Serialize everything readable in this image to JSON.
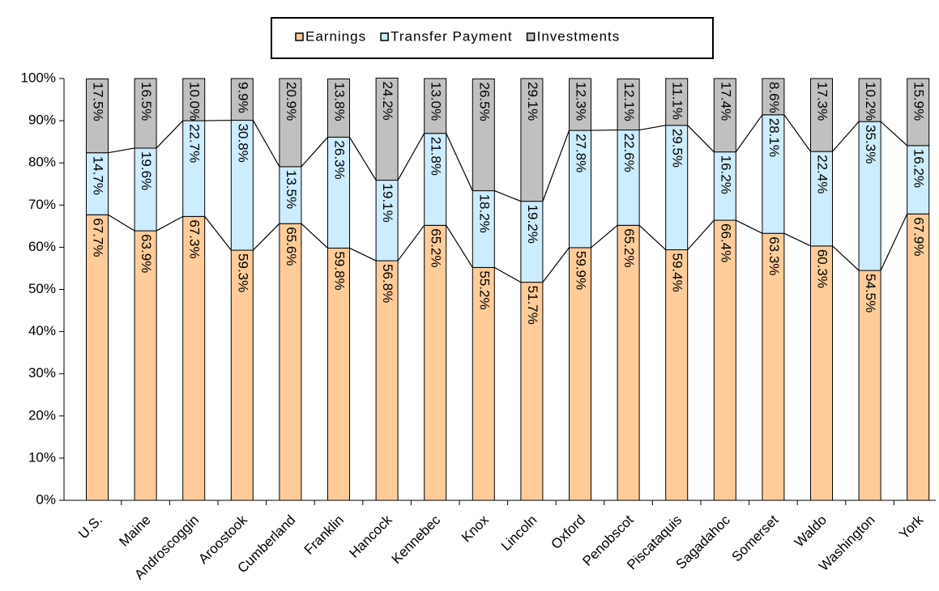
{
  "chart_data": {
    "type": "stacked-bar",
    "categories": [
      "U.S.",
      "Maine",
      "Androscoggin",
      "Aroostook",
      "Cumberland",
      "Franklin",
      "Hancock",
      "Kennebec",
      "Knox",
      "Lincoln",
      "Oxford",
      "Penobscot",
      "Piscataquis",
      "Sagadahoc",
      "Somerset",
      "Waldo",
      "Washington",
      "York"
    ],
    "series": [
      {
        "name": "Earnings",
        "color": "#FFCC99",
        "values": [
          67.7,
          63.9,
          67.3,
          59.3,
          65.6,
          59.8,
          56.8,
          65.2,
          55.2,
          51.7,
          59.9,
          65.2,
          59.4,
          66.4,
          63.3,
          60.3,
          54.5,
          67.9
        ],
        "value_labels": [
          "67.7%",
          "63.9%",
          "67.3%",
          "59.3%",
          "65.6%",
          "59.8%",
          "56.8%",
          "65.2%",
          "55.2%",
          "51.7%",
          "59.9%",
          "65.2%",
          "59.4%",
          "66.4%",
          "63.3%",
          "60.3%",
          "54.5%",
          "67.9%"
        ]
      },
      {
        "name": "Transfer Payment",
        "color": "#CCECFF",
        "values": [
          14.7,
          19.6,
          22.7,
          30.8,
          13.5,
          26.3,
          19.1,
          21.8,
          18.2,
          19.2,
          27.8,
          22.6,
          29.5,
          16.2,
          28.1,
          22.4,
          35.3,
          16.2
        ],
        "value_labels": [
          "14.7%",
          "19.6%",
          "22.7%",
          "30.8%",
          "13.5%",
          "26.3%",
          "19.1%",
          "21.8%",
          "18.2%",
          "19.2%",
          "27.8%",
          "22.6%",
          "29.5%",
          "16.2%",
          "28.1%",
          "22.4%",
          "35.3%",
          "16.2%"
        ]
      },
      {
        "name": "Investments",
        "color": "#C0C0C0",
        "values": [
          17.5,
          16.5,
          10.0,
          9.9,
          20.9,
          13.8,
          24.2,
          13.0,
          26.5,
          29.1,
          12.3,
          12.1,
          11.1,
          17.4,
          8.6,
          17.3,
          10.2,
          15.9
        ],
        "value_labels": [
          "17.5%",
          "16.5%",
          "10.0%",
          "9.9%",
          "20.9%",
          "13.8%",
          "24.2%",
          "13.0%",
          "26.5%",
          "29.1%",
          "12.3%",
          "12.1%",
          "11.1%",
          "17.4%",
          "8.6%",
          "17.3%",
          "10.2%",
          "15.9%"
        ]
      }
    ],
    "ylim": [
      0,
      100
    ],
    "yticks": [
      {
        "value": 0,
        "label": "0%"
      },
      {
        "value": 10,
        "label": "10%"
      },
      {
        "value": 20,
        "label": "20%"
      },
      {
        "value": 30,
        "label": "30%"
      },
      {
        "value": 40,
        "label": "40%"
      },
      {
        "value": 50,
        "label": "50%"
      },
      {
        "value": 60,
        "label": "60%"
      },
      {
        "value": 70,
        "label": "70%"
      },
      {
        "value": 80,
        "label": "80%"
      },
      {
        "value": 90,
        "label": "90%"
      },
      {
        "value": 100,
        "label": "100%"
      }
    ],
    "legend": "top"
  }
}
